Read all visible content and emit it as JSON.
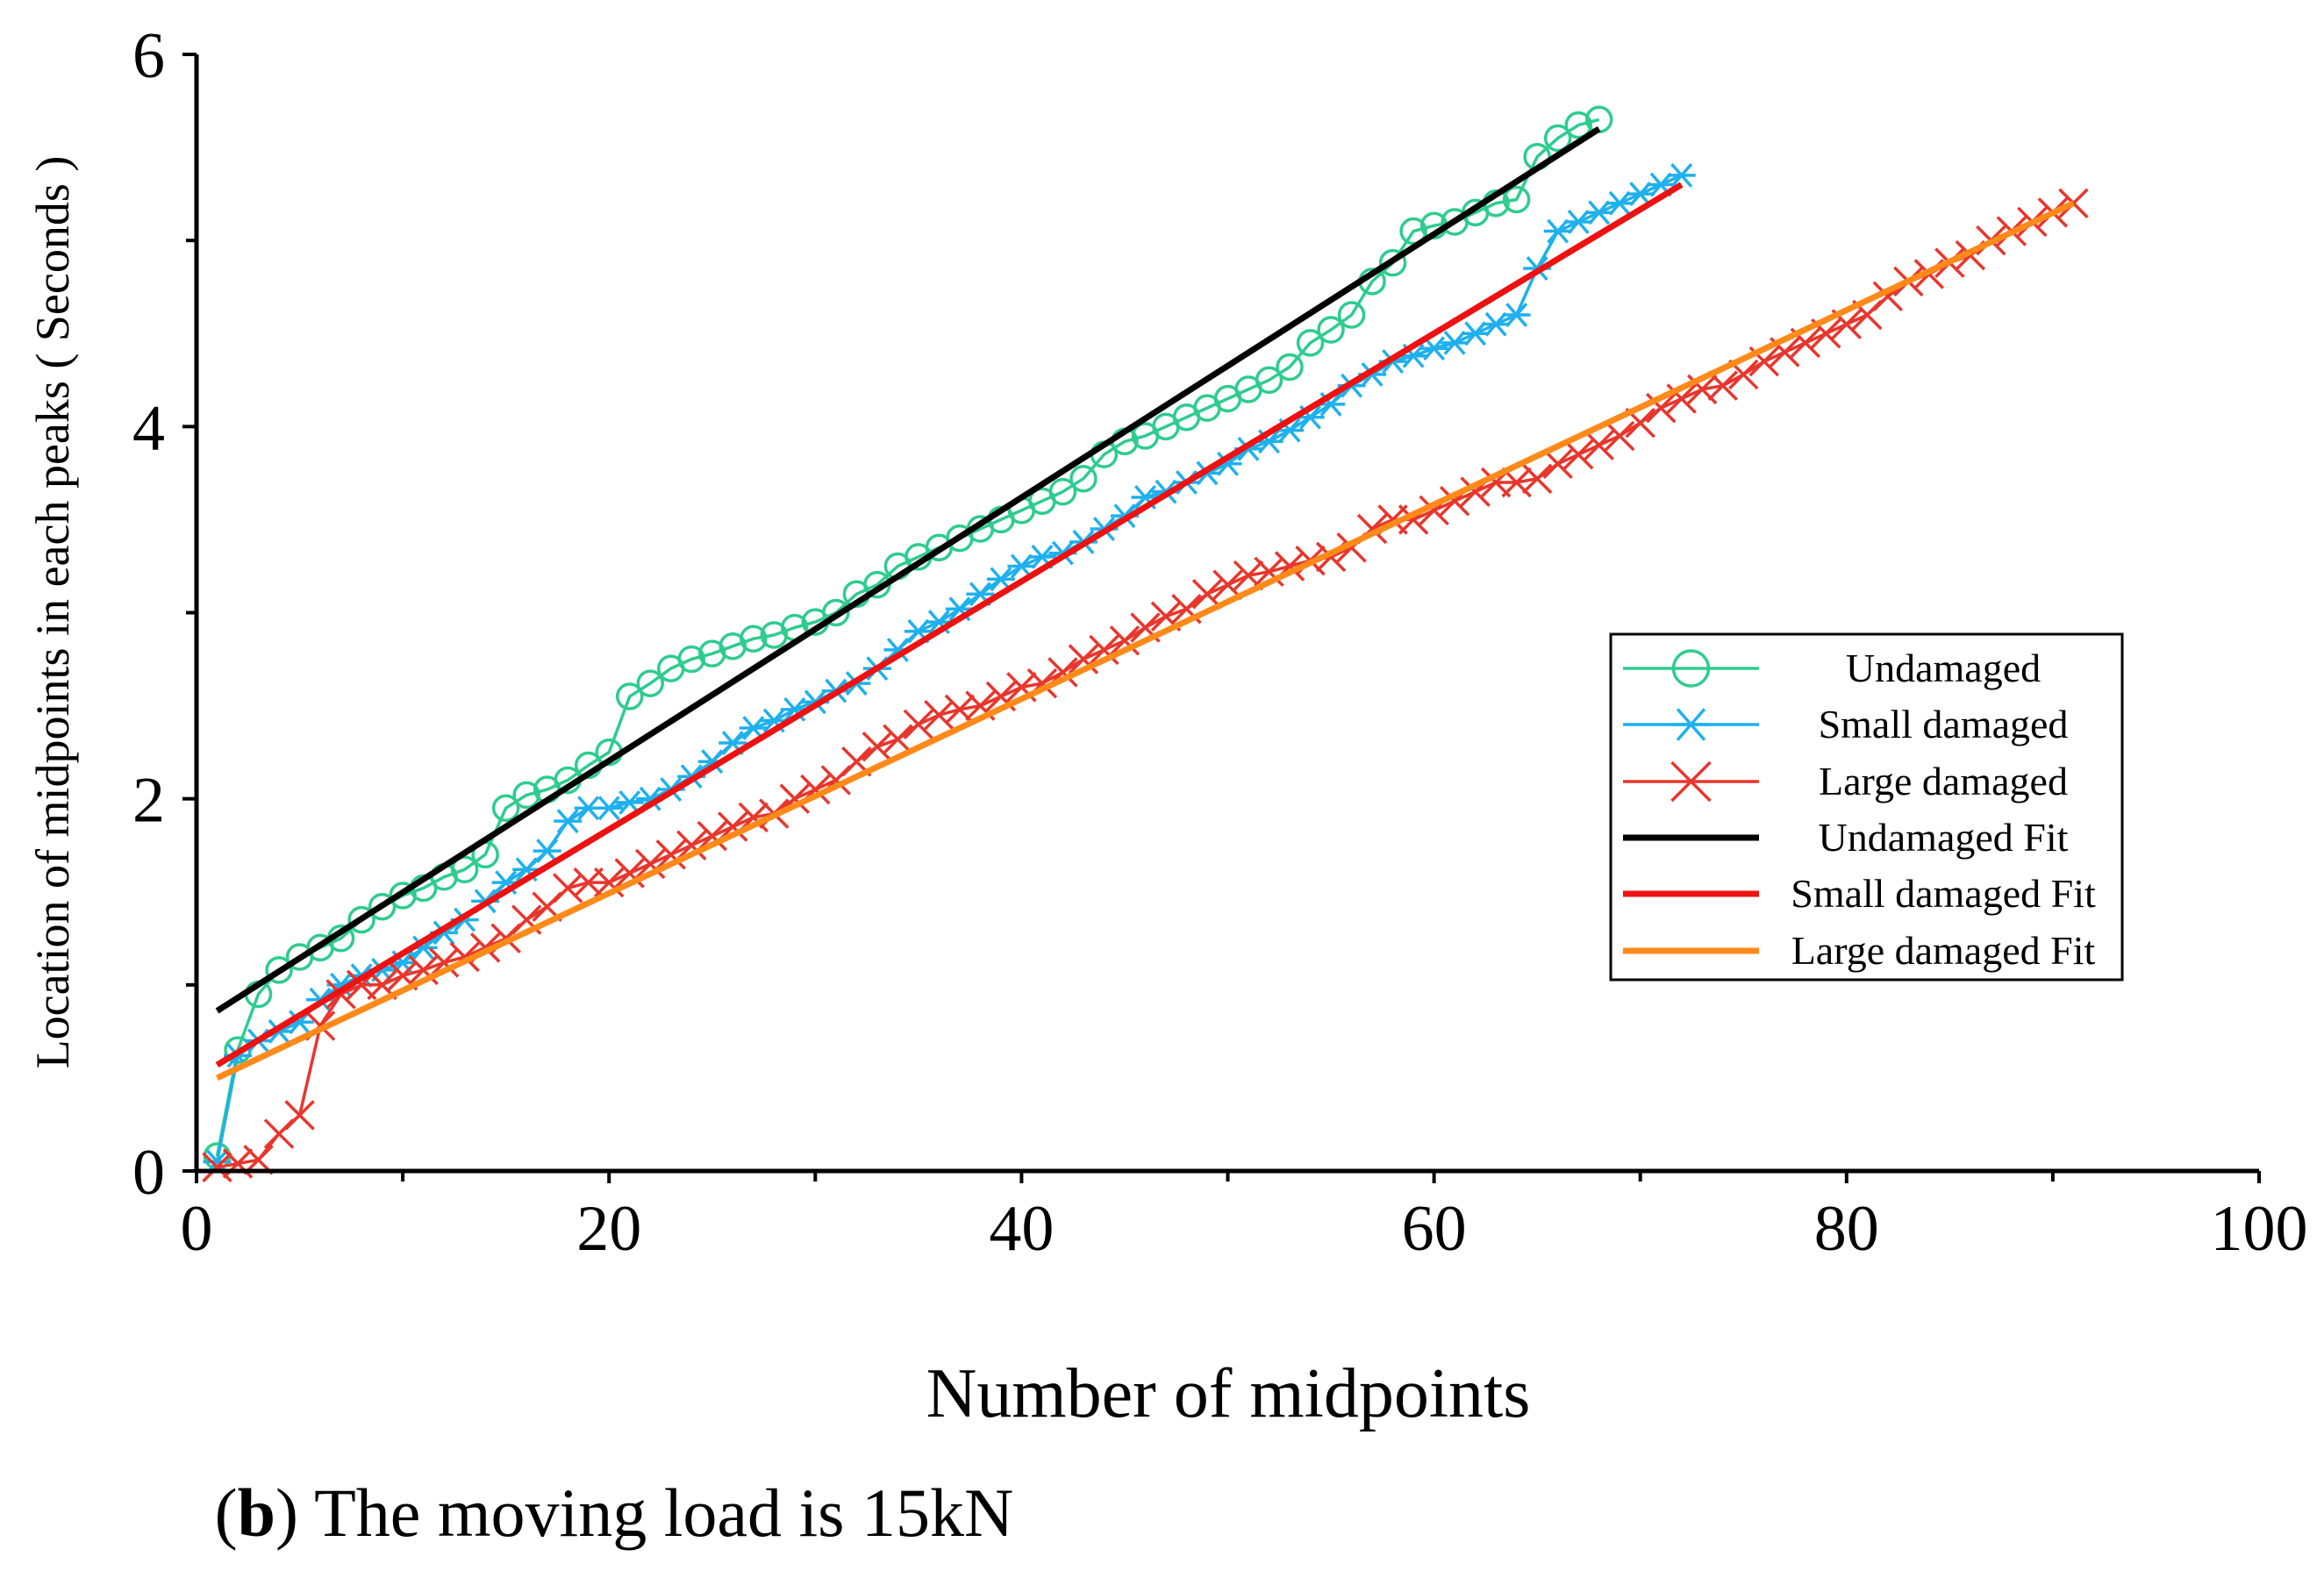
{
  "chart_data": {
    "type": "line",
    "xlabel": "Number of midpoints",
    "ylabel": "Location of midpoints in each peaks ( Seconds )",
    "xlim": [
      0,
      100
    ],
    "ylim": [
      0,
      6
    ],
    "xticks": [
      "0",
      "20",
      "40",
      "60",
      "80",
      "100"
    ],
    "yticks": [
      "0",
      "2",
      "4",
      "6"
    ],
    "caption_letter": "b",
    "caption_text": "The moving load is 15kN",
    "series": [
      {
        "name": "Undamaged",
        "color": "#2ecc8f",
        "marker": "circle",
        "x": [
          1,
          2,
          3,
          4,
          5,
          6,
          7,
          8,
          9,
          10,
          11,
          12,
          13,
          14,
          15,
          16,
          17,
          18,
          19,
          20,
          21,
          22,
          23,
          24,
          25,
          26,
          27,
          28,
          29,
          30,
          31,
          32,
          33,
          34,
          35,
          36,
          37,
          38,
          39,
          40,
          41,
          42,
          43,
          44,
          45,
          46,
          47,
          48,
          49,
          50,
          51,
          52,
          53,
          54,
          55,
          56,
          57,
          58,
          59,
          60,
          61,
          62,
          63,
          64,
          65,
          66,
          67,
          68
        ],
        "y": [
          0.08,
          0.65,
          0.95,
          1.08,
          1.15,
          1.2,
          1.25,
          1.35,
          1.42,
          1.48,
          1.52,
          1.58,
          1.62,
          1.7,
          1.95,
          2.02,
          2.05,
          2.1,
          2.18,
          2.25,
          2.55,
          2.62,
          2.7,
          2.75,
          2.78,
          2.82,
          2.86,
          2.88,
          2.92,
          2.95,
          3.0,
          3.1,
          3.15,
          3.25,
          3.3,
          3.35,
          3.4,
          3.45,
          3.5,
          3.55,
          3.6,
          3.65,
          3.72,
          3.85,
          3.92,
          3.95,
          4.0,
          4.05,
          4.1,
          4.15,
          4.2,
          4.25,
          4.32,
          4.45,
          4.52,
          4.6,
          4.78,
          4.88,
          5.05,
          5.08,
          5.1,
          5.15,
          5.2,
          5.22,
          5.45,
          5.55,
          5.62,
          5.65
        ]
      },
      {
        "name": "Small damaged",
        "color": "#1fb0ee",
        "marker": "asterisk",
        "x": [
          1,
          2,
          3,
          4,
          5,
          6,
          7,
          8,
          9,
          10,
          11,
          12,
          13,
          14,
          15,
          16,
          17,
          18,
          19,
          20,
          21,
          22,
          23,
          24,
          25,
          26,
          27,
          28,
          29,
          30,
          31,
          32,
          33,
          34,
          35,
          36,
          37,
          38,
          39,
          40,
          41,
          42,
          43,
          44,
          45,
          46,
          47,
          48,
          49,
          50,
          51,
          52,
          53,
          54,
          55,
          56,
          57,
          58,
          59,
          60,
          61,
          62,
          63,
          64,
          65,
          66,
          67,
          68,
          69,
          70,
          71,
          72
        ],
        "y": [
          0.05,
          0.62,
          0.7,
          0.75,
          0.8,
          0.92,
          1.0,
          1.05,
          1.08,
          1.12,
          1.2,
          1.28,
          1.35,
          1.45,
          1.55,
          1.62,
          1.72,
          1.88,
          1.95,
          1.95,
          1.98,
          2.0,
          2.05,
          2.12,
          2.2,
          2.3,
          2.38,
          2.42,
          2.48,
          2.52,
          2.58,
          2.62,
          2.7,
          2.8,
          2.9,
          2.95,
          3.02,
          3.1,
          3.18,
          3.25,
          3.3,
          3.32,
          3.38,
          3.45,
          3.52,
          3.62,
          3.65,
          3.7,
          3.75,
          3.8,
          3.88,
          3.92,
          3.98,
          4.05,
          4.12,
          4.22,
          4.28,
          4.35,
          4.38,
          4.42,
          4.45,
          4.5,
          4.55,
          4.6,
          4.85,
          5.05,
          5.1,
          5.15,
          5.2,
          5.25,
          5.3,
          5.35
        ]
      },
      {
        "name": "Large damaged",
        "color": "#e8362d",
        "marker": "x",
        "x": [
          1,
          2,
          3,
          4,
          5,
          6,
          7,
          8,
          9,
          10,
          11,
          12,
          13,
          14,
          15,
          16,
          17,
          18,
          19,
          20,
          21,
          22,
          23,
          24,
          25,
          26,
          27,
          28,
          29,
          30,
          31,
          32,
          33,
          34,
          35,
          36,
          37,
          38,
          39,
          40,
          41,
          42,
          43,
          44,
          45,
          46,
          47,
          48,
          49,
          50,
          51,
          52,
          53,
          54,
          55,
          56,
          57,
          58,
          59,
          60,
          61,
          62,
          63,
          64,
          65,
          66,
          67,
          68,
          69,
          70,
          71,
          72,
          73,
          74,
          75,
          76,
          77,
          78,
          79,
          80,
          81,
          82,
          83,
          84,
          85,
          86,
          87,
          88,
          89,
          90,
          91
        ],
        "y": [
          0.02,
          0.04,
          0.06,
          0.2,
          0.3,
          0.78,
          0.95,
          1.0,
          1.0,
          1.05,
          1.08,
          1.12,
          1.15,
          1.2,
          1.25,
          1.35,
          1.42,
          1.52,
          1.55,
          1.55,
          1.6,
          1.65,
          1.7,
          1.75,
          1.8,
          1.85,
          1.9,
          1.92,
          2.0,
          2.05,
          2.1,
          2.2,
          2.28,
          2.32,
          2.4,
          2.45,
          2.48,
          2.5,
          2.55,
          2.6,
          2.62,
          2.68,
          2.75,
          2.8,
          2.85,
          2.92,
          2.98,
          3.02,
          3.1,
          3.15,
          3.2,
          3.22,
          3.25,
          3.28,
          3.3,
          3.35,
          3.45,
          3.5,
          3.5,
          3.55,
          3.6,
          3.65,
          3.7,
          3.7,
          3.72,
          3.8,
          3.85,
          3.9,
          3.95,
          4.02,
          4.1,
          4.15,
          4.2,
          4.22,
          4.28,
          4.35,
          4.4,
          4.45,
          4.5,
          4.55,
          4.6,
          4.7,
          4.78,
          4.82,
          4.88,
          4.92,
          5.0,
          5.05,
          5.1,
          5.15,
          5.2
        ]
      },
      {
        "name": "Undamaged Fit",
        "color": "#000000",
        "marker": "none",
        "x": [
          1,
          68
        ],
        "y": [
          0.86,
          5.6
        ]
      },
      {
        "name": "Small damaged Fit",
        "color": "#ee1111",
        "marker": "none",
        "x": [
          1,
          72
        ],
        "y": [
          0.57,
          5.3
        ]
      },
      {
        "name": "Large damaged Fit",
        "color": "#ff8a1a",
        "marker": "none",
        "x": [
          1,
          91
        ],
        "y": [
          0.5,
          5.2
        ]
      }
    ]
  }
}
